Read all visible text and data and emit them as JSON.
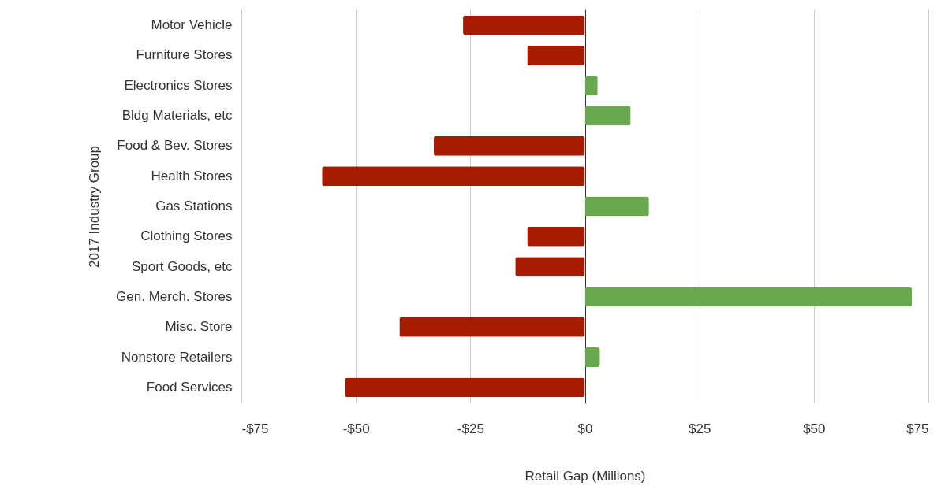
{
  "chart_data": {
    "type": "bar",
    "orientation": "horizontal",
    "xlabel": "Retail Gap (Millions)",
    "ylabel": "2017 Industry Group",
    "categories": [
      "Motor Vehicle",
      "Furniture Stores",
      "Electronics Stores",
      "Bldg Materials, etc",
      "Food & Bev. Stores",
      "Health Stores",
      "Gas Stations",
      "Clothing Stores",
      "Sport Goods, etc",
      "Gen. Merch. Stores",
      "Misc. Store",
      "Nonstore Retailers",
      "Food Services"
    ],
    "values": [
      -26.6,
      -12.6,
      2.8,
      10,
      -33,
      -57.4,
      14,
      -12.6,
      -15.2,
      71.4,
      -40.5,
      3.3,
      -52.4
    ],
    "colors": [
      "#a61c00",
      "#a61c00",
      "#6aa84f",
      "#6aa84f",
      "#a61c00",
      "#a61c00",
      "#6aa84f",
      "#a61c00",
      "#a61c00",
      "#6aa84f",
      "#a61c00",
      "#6aa84f",
      "#a61c00"
    ],
    "xlim": [
      -75,
      75
    ],
    "xticks": [
      {
        "value": -75,
        "label": "-$75"
      },
      {
        "value": -50,
        "label": "-$50"
      },
      {
        "value": -25,
        "label": "-$25"
      },
      {
        "value": 0,
        "label": "$0"
      },
      {
        "value": 25,
        "label": "$25"
      },
      {
        "value": 50,
        "label": "$50"
      },
      {
        "value": 75,
        "label": "$75"
      }
    ],
    "grid": "x"
  }
}
